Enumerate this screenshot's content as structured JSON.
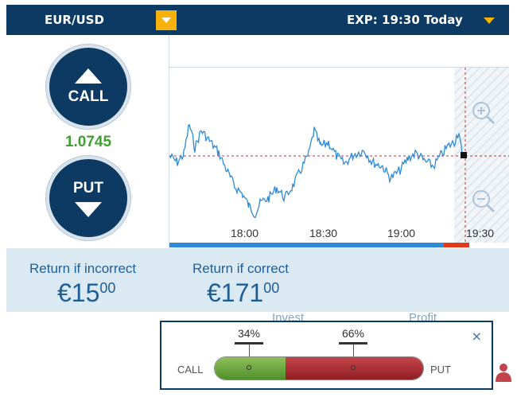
{
  "header": {
    "asset": "EUR/USD",
    "expiry": "EXP: 19:30 Today"
  },
  "trade": {
    "call_label": "CALL",
    "put_label": "PUT",
    "price": "1.0745"
  },
  "chart_data": {
    "type": "line",
    "x_ticks": [
      "18:00",
      "18:30",
      "19:00",
      "19:30"
    ],
    "current_price_line": "dashed red",
    "expiry_window": "hatched",
    "colors": {
      "line": "#2f8ad8",
      "strike": "#e02020",
      "progress": "#2f8ad8",
      "progress_end": "#e03a1a"
    }
  },
  "returns": {
    "incorrect_label": "Return if incorrect",
    "incorrect_main": "€15",
    "incorrect_cents": "00",
    "correct_label": "Return if correct",
    "correct_main": "€171",
    "correct_cents": "00"
  },
  "background_labels": {
    "invest": "Invest",
    "profit": "Profit"
  },
  "sentiment": {
    "call_pct": "34%",
    "put_pct": "66%",
    "call_share": 0.34,
    "put_share": 0.66,
    "call_label": "CALL",
    "put_label": "PUT",
    "close": "×"
  },
  "icons": {
    "zoom_in": "zoom-in-icon",
    "zoom_out": "zoom-out-icon",
    "dropdown": "chevron-down-icon",
    "person": "person-icon"
  }
}
